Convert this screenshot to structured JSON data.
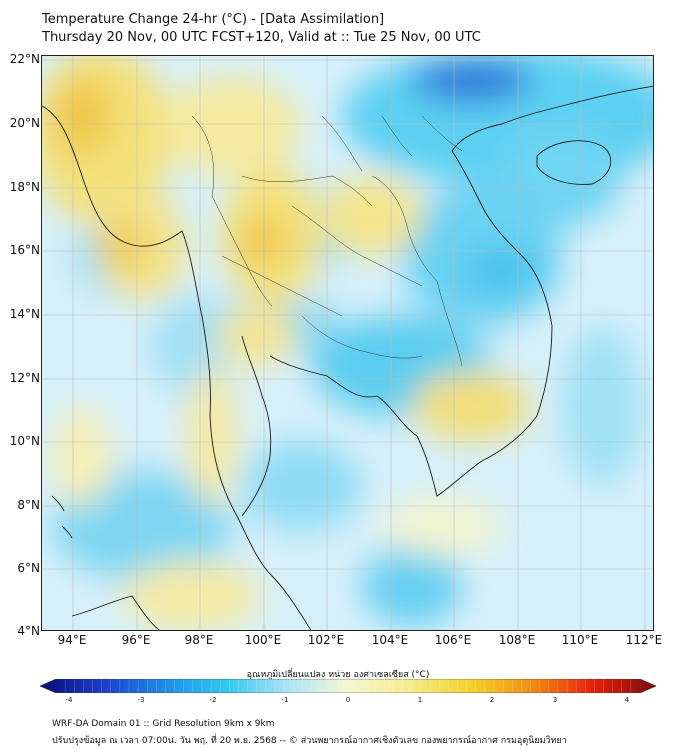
{
  "title": {
    "line1": "Temperature Change 24-hr (°C) - [Data Assimilation]",
    "line2": "Thursday 20 Nov, 00 UTC FCST+120, Valid at :: Tue 25 Nov, 00 UTC"
  },
  "map": {
    "lat_labels": [
      "22°N",
      "20°N",
      "18°N",
      "16°N",
      "14°N",
      "12°N",
      "10°N",
      "8°N",
      "6°N",
      "4°N"
    ],
    "lon_labels": [
      "94°E",
      "96°E",
      "98°E",
      "100°E",
      "102°E",
      "104°E",
      "106°E",
      "108°E",
      "110°E",
      "112°E"
    ]
  },
  "colorbar": {
    "label": "อุณหภูมิเปลี่ยนแปลง หน่วย องศาเซลเซียส (°C)",
    "ticks": [
      "-4",
      "-3",
      "-2",
      "-1",
      "0",
      "1",
      "2",
      "3",
      "4"
    ],
    "range": [
      -4,
      4
    ],
    "colors": [
      "#0a0a78",
      "#1a3cc8",
      "#1e8ce6",
      "#2ec8f0",
      "#a8e4f6",
      "#f7f7d2",
      "#f4ec8a",
      "#f2d22a",
      "#f08c14",
      "#e61e0a",
      "#781010"
    ]
  },
  "footer": {
    "line1": "WRF-DA Domain 01 :: Grid Resolution 9km x 9km",
    "line2": "ปรับปรุงข้อมูล ณ เวลา 07:00น. วัน พฤ. ที่ 20 พ.ย. 2568 -- © ส่วนพยากรณ์อากาศเชิงตัวเลข กองพยากรณ์อากาศ กรมอุตุนิยมวิทยา"
  }
}
